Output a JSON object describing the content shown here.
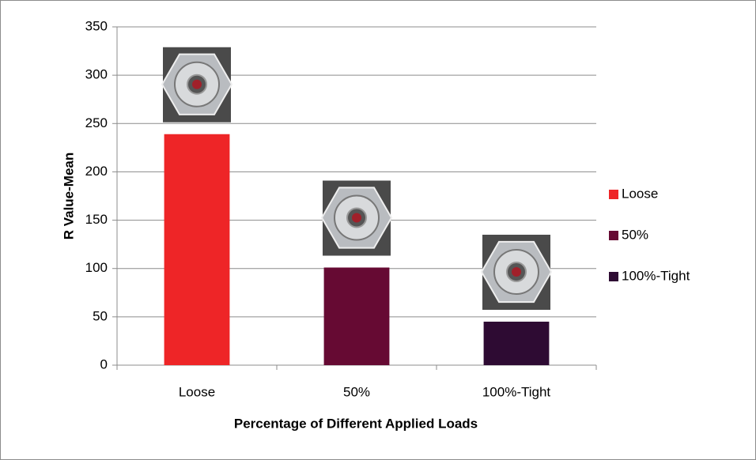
{
  "chart_data": {
    "type": "bar",
    "x_label": "Percentage of Different Applied Loads",
    "y_label": "R Value-Mean",
    "categories": [
      "Loose",
      "50%",
      "100%-Tight"
    ],
    "values": [
      239,
      101,
      45
    ],
    "colors": [
      "#ee2527",
      "#660a33",
      "#2e0b33"
    ],
    "ylim": [
      0,
      350
    ],
    "yticks": [
      0,
      50,
      100,
      150,
      200,
      250,
      300,
      350
    ],
    "grid": true,
    "legend": "right"
  }
}
